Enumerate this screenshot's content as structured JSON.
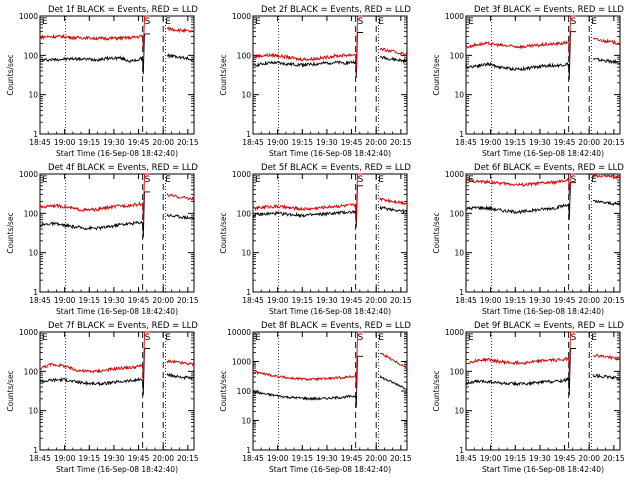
{
  "colors": {
    "events": "#000000",
    "lld": "#d00000"
  },
  "xlabel": "Start Time (16-Sep-08 18:42:40)",
  "ylabel": "Counts/sec",
  "x_tick_labels": [
    "18:45",
    "19:00",
    "19:15",
    "19:30",
    "19:45",
    "20:00",
    "20:15"
  ],
  "annotations": [
    "E",
    "S",
    "E"
  ],
  "chart_data": [
    {
      "type": "line",
      "title": "Det 1f BLACK = Events, RED = LLD",
      "ylim": [
        1,
        1000
      ],
      "yscale": "log",
      "y_tick_labels": [
        "1",
        "10",
        "100",
        "1000"
      ],
      "series": [
        {
          "name": "Events",
          "values": [
            75,
            78,
            80,
            82,
            80,
            78,
            84,
            86,
            70,
            83,
            350,
            100,
            78
          ]
        },
        {
          "name": "LLD",
          "values": [
            290,
            300,
            300,
            280,
            280,
            270,
            270,
            275,
            280,
            310,
            1000,
            480,
            390
          ]
        }
      ]
    },
    {
      "type": "line",
      "title": "Det 2f BLACK = Events, RED = LLD",
      "ylim": [
        1,
        1000
      ],
      "yscale": "log",
      "y_tick_labels": [
        "1",
        "10",
        "100",
        "1000"
      ],
      "series": [
        {
          "name": "Events",
          "values": [
            55,
            62,
            65,
            60,
            58,
            58,
            62,
            66,
            64,
            68,
            380,
            90,
            70
          ]
        },
        {
          "name": "LLD",
          "values": [
            90,
            100,
            100,
            90,
            80,
            80,
            85,
            95,
            100,
            105,
            1000,
            145,
            105
          ]
        }
      ]
    },
    {
      "type": "line",
      "title": "Det 3f BLACK = Events, RED = LLD",
      "ylim": [
        1,
        1000
      ],
      "yscale": "log",
      "y_tick_labels": [
        "1",
        "10",
        "100",
        "1000"
      ],
      "series": [
        {
          "name": "Events",
          "values": [
            50,
            55,
            60,
            50,
            45,
            45,
            50,
            55,
            55,
            60,
            400,
            80,
            65
          ]
        },
        {
          "name": "LLD",
          "values": [
            160,
            190,
            200,
            180,
            170,
            165,
            175,
            190,
            195,
            215,
            1000,
            260,
            200
          ]
        }
      ]
    },
    {
      "type": "line",
      "title": "Det 4f BLACK = Events, RED = LLD",
      "ylim": [
        1,
        1000
      ],
      "yscale": "log",
      "y_tick_labels": [
        "1",
        "10",
        "100",
        "1000"
      ],
      "series": [
        {
          "name": "Events",
          "values": [
            50,
            55,
            50,
            45,
            42,
            42,
            45,
            52,
            55,
            60,
            350,
            90,
            75
          ]
        },
        {
          "name": "LLD",
          "values": [
            140,
            160,
            150,
            130,
            120,
            125,
            140,
            155,
            160,
            175,
            1000,
            290,
            230
          ]
        }
      ]
    },
    {
      "type": "line",
      "title": "Det 5f BLACK = Events, RED = LLD",
      "ylim": [
        1,
        1000
      ],
      "yscale": "log",
      "y_tick_labels": [
        "1",
        "10",
        "100",
        "1000"
      ],
      "series": [
        {
          "name": "Events",
          "values": [
            90,
            95,
            100,
            95,
            90,
            90,
            95,
            100,
            105,
            110,
            500,
            140,
            110
          ]
        },
        {
          "name": "LLD",
          "values": [
            130,
            145,
            150,
            140,
            130,
            130,
            140,
            150,
            155,
            165,
            1000,
            230,
            180
          ]
        }
      ]
    },
    {
      "type": "line",
      "title": "Det 6f BLACK = Events, RED = LLD",
      "ylim": [
        1,
        1000
      ],
      "yscale": "log",
      "y_tick_labels": [
        "1",
        "10",
        "100",
        "1000"
      ],
      "series": [
        {
          "name": "Events",
          "values": [
            130,
            140,
            135,
            120,
            110,
            110,
            120,
            130,
            140,
            170,
            600,
            200,
            170
          ]
        },
        {
          "name": "LLD",
          "values": [
            700,
            650,
            620,
            580,
            550,
            530,
            560,
            600,
            620,
            700,
            1000,
            900,
            850
          ]
        }
      ]
    },
    {
      "type": "line",
      "title": "Det 7f BLACK = Events, RED = LLD",
      "ylim": [
        1,
        1000
      ],
      "yscale": "log",
      "y_tick_labels": [
        "1",
        "10",
        "100",
        "1000"
      ],
      "series": [
        {
          "name": "Events",
          "values": [
            55,
            60,
            62,
            55,
            50,
            48,
            50,
            55,
            58,
            62,
            380,
            80,
            65
          ]
        },
        {
          "name": "LLD",
          "values": [
            120,
            150,
            140,
            110,
            100,
            100,
            110,
            120,
            125,
            140,
            1000,
            180,
            150
          ]
        }
      ]
    },
    {
      "type": "line",
      "title": "Det 8f BLACK = Events, RED = LLD",
      "ylim": [
        1,
        10000
      ],
      "yscale": "log",
      "y_tick_labels": [
        "1",
        "10",
        "100",
        "1000",
        "10000"
      ],
      "series": [
        {
          "name": "Events",
          "values": [
            95,
            80,
            70,
            62,
            58,
            55,
            55,
            58,
            62,
            68,
            1500,
            300,
            120
          ]
        },
        {
          "name": "LLD",
          "values": [
            450,
            380,
            320,
            280,
            260,
            250,
            255,
            270,
            290,
            320,
            10000,
            2000,
            600
          ]
        }
      ]
    },
    {
      "type": "line",
      "title": "Det 9f BLACK = Events, RED = LLD",
      "ylim": [
        1,
        1000
      ],
      "yscale": "log",
      "y_tick_labels": [
        "1",
        "10",
        "100",
        "1000"
      ],
      "series": [
        {
          "name": "Events",
          "values": [
            50,
            55,
            55,
            50,
            48,
            48,
            50,
            55,
            56,
            62,
            380,
            80,
            65
          ]
        },
        {
          "name": "LLD",
          "values": [
            160,
            190,
            200,
            175,
            165,
            165,
            175,
            190,
            195,
            210,
            1000,
            260,
            210
          ]
        }
      ]
    }
  ]
}
